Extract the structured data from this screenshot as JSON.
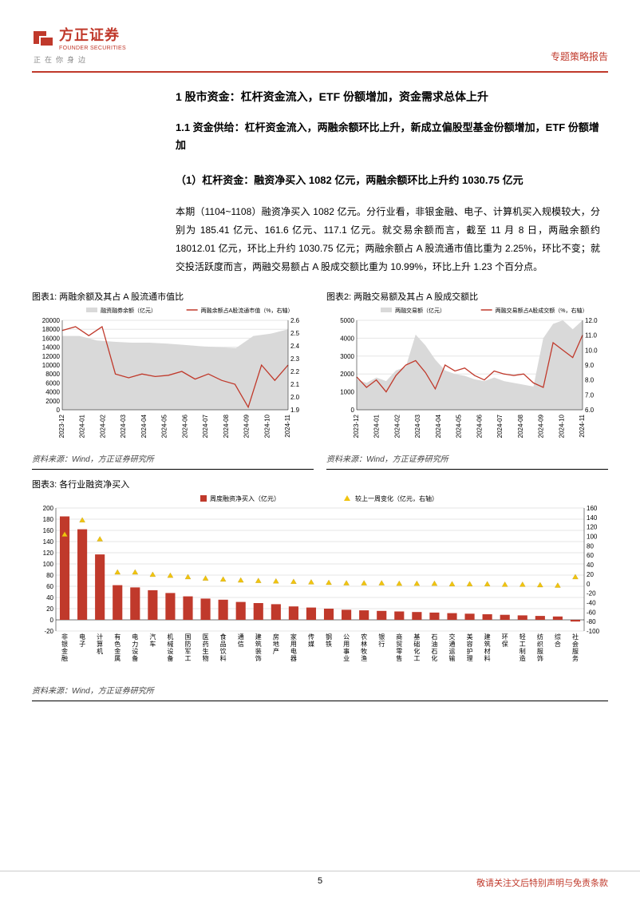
{
  "header": {
    "logo_zh": "方正证券",
    "logo_en": "FOUNDER SECURITIES",
    "logo_tagline": "正在你身边",
    "report_type": "专题策略报告",
    "brand_color": "#c0392b"
  },
  "body": {
    "h1": "1 股市资金：杠杆资金流入，ETF 份额增加，资金需求总体上升",
    "h2": "1.1 资金供给：杠杆资金流入，两融余额环比上升，新成立偏股型基金份额增加，ETF 份额增加",
    "h3": "（1）杠杆资金：融资净买入 1082 亿元，两融余额环比上升约 1030.75 亿元",
    "para": "本期（1104~1108）融资净买入 1082 亿元。分行业看，非银金融、电子、计算机买入规模较大，分别为 185.41 亿元、161.6 亿元、117.1 亿元。就交易余额而言，截至 11 月 8 日，两融余额约 18012.01 亿元，环比上升约 1030.75 亿元；两融余额占 A 股流通市值比重为 2.25%，环比不变；就交投活跃度而言，两融交易额占 A 股成交额比重为 10.99%，环比上升 1.23 个百分点。"
  },
  "chart1": {
    "title": "图表1: 两融余额及其占 A 股流通市值比",
    "type": "area-line-dual-axis",
    "legend_area": "融资融券余额（亿元）",
    "legend_line": "两融余额占A股流通市值（%，右轴）",
    "source": "资料来源：Wind，方正证券研究所",
    "x_labels": [
      "2023-12",
      "2024-01",
      "2024-02",
      "2024-03",
      "2024-04",
      "2024-05",
      "2024-06",
      "2024-07",
      "2024-08",
      "2024-09",
      "2024-10",
      "2024-11"
    ],
    "y_left": {
      "min": 0,
      "max": 20000,
      "step": 2000
    },
    "y_right": {
      "min": 1.9,
      "max": 2.6,
      "step": 0.1
    },
    "area_values": [
      16500,
      16500,
      15500,
      15200,
      15000,
      15000,
      14800,
      14500,
      14200,
      14000,
      13800,
      16500,
      17000,
      18000
    ],
    "line_values": [
      2.52,
      2.55,
      2.48,
      2.55,
      2.18,
      2.15,
      2.18,
      2.16,
      2.17,
      2.2,
      2.14,
      2.18,
      2.13,
      2.1,
      1.92,
      2.25,
      2.13,
      2.25
    ],
    "area_color": "#d9d9d9",
    "line_color": "#c0392b",
    "grid_color": "#e5e5e5",
    "axis_font": 8
  },
  "chart2": {
    "title": "图表2: 两融交易额及其占 A 股成交额比",
    "type": "area-line-dual-axis",
    "legend_area": "两融交易额（亿元）",
    "legend_line": "两融交易额占A股成交额（%，右轴）",
    "source": "资料来源：Wind，方正证券研究所",
    "x_labels": [
      "2023-12",
      "2024-01",
      "2024-02",
      "2024-03",
      "2024-04",
      "2024-05",
      "2024-06",
      "2024-07",
      "2024-08",
      "2024-09",
      "2024-10",
      "2024-11"
    ],
    "y_left": {
      "min": 0,
      "max": 5000,
      "step": 1000
    },
    "y_right": {
      "min": 6.0,
      "max": 12.0,
      "step": 1.0
    },
    "area_values": [
      1700,
      1500,
      1800,
      1600,
      2200,
      2400,
      4200,
      3600,
      2800,
      2200,
      2000,
      1900,
      1700,
      1600,
      1800,
      1600,
      1500,
      1400,
      1300,
      4000,
      4800,
      5000,
      4500,
      5000
    ],
    "line_values": [
      8.2,
      7.5,
      8.0,
      7.2,
      8.3,
      9.0,
      9.3,
      8.5,
      7.4,
      9.0,
      8.6,
      8.8,
      8.3,
      8.0,
      8.6,
      8.4,
      8.3,
      8.4,
      7.8,
      7.5,
      10.5,
      10.0,
      9.5,
      11.0
    ],
    "area_color": "#d9d9d9",
    "line_color": "#c0392b",
    "grid_color": "#e5e5e5",
    "axis_font": 8
  },
  "chart3": {
    "title": "图表3: 各行业融资净买入",
    "type": "bar-marker-dual-axis",
    "legend_bar": "周度融资净买入（亿元）",
    "legend_marker": "较上一周变化（亿元，右轴）",
    "source": "资料来源：Wind，方正证券研究所",
    "x_labels": [
      "非银金融",
      "电子",
      "计算机",
      "有色金属",
      "电力设备",
      "汽车",
      "机械设备",
      "国防军工",
      "医药生物",
      "食品饮料",
      "通信",
      "建筑装饰",
      "房地产",
      "家用电器",
      "传媒",
      "钢铁",
      "公用事业",
      "农林牧渔",
      "银行",
      "商贸零售",
      "基础化工",
      "石油石化",
      "交通运输",
      "美容护理",
      "建筑材料",
      "环保",
      "轻工制造",
      "纺织服饰",
      "综合",
      "社会服务"
    ],
    "y_left": {
      "min": -20,
      "max": 200,
      "step": 20
    },
    "y_right": {
      "min": -100,
      "max": 160,
      "step": 20
    },
    "bar_values": [
      185,
      162,
      117,
      62,
      58,
      53,
      48,
      42,
      38,
      36,
      32,
      30,
      28,
      24,
      22,
      20,
      18,
      17,
      16,
      15,
      14,
      13,
      12,
      11,
      10,
      9,
      8,
      7,
      6,
      -3
    ],
    "marker_values": [
      105,
      135,
      95,
      25,
      25,
      20,
      18,
      15,
      12,
      10,
      8,
      7,
      6,
      5,
      4,
      3,
      2,
      2,
      2,
      1,
      1,
      1,
      0,
      0,
      0,
      -1,
      -1,
      -2,
      -3,
      15
    ],
    "bar_color": "#c0392b",
    "marker_color": "#f1c40f",
    "grid_color": "#e5e5e5",
    "axis_font": 8
  },
  "footer": {
    "page_number": "5",
    "disclaimer": "敬请关注文后特别声明与免责条款"
  }
}
